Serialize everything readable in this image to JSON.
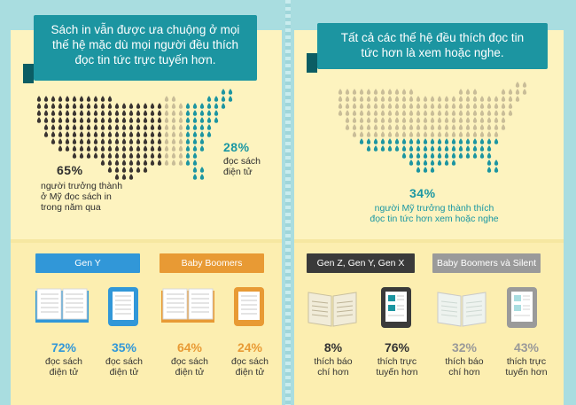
{
  "left": {
    "headline": [
      "Sách in vẫn được ưa chuộng ở mọi",
      "thế hệ mặc dù mọi người đều thích",
      "đọc tin tức trực tuyến hơn."
    ],
    "stat_main": {
      "value": "65%",
      "label": [
        "người trưởng thành",
        "ở Mỹ đọc sách in",
        "trong năm qua"
      ]
    },
    "stat_secondary": {
      "value": "28%",
      "label": [
        "đọc sách",
        "điện tử"
      ]
    },
    "groups": [
      {
        "tag": "Gen Y",
        "items": [
          {
            "icon": "open-book-icon",
            "value": "72%",
            "label": [
              "đọc sách",
              "điện tử"
            ]
          },
          {
            "icon": "tablet-icon",
            "value": "35%",
            "label": [
              "đọc sách",
              "điện tử"
            ]
          }
        ]
      },
      {
        "tag": "Baby Boomers",
        "items": [
          {
            "icon": "open-book-icon",
            "value": "64%",
            "label": [
              "đọc sách",
              "điện tử"
            ]
          },
          {
            "icon": "tablet-icon",
            "value": "24%",
            "label": [
              "đọc sách",
              "điện tử"
            ]
          }
        ]
      }
    ]
  },
  "right": {
    "headline": [
      "Tất cả các thế hệ đều thích đọc tin",
      "tức hơn là xem hoặc nghe."
    ],
    "stat_main": {
      "value": "34%",
      "label": [
        "người Mỹ trưởng thành thích",
        "đọc tin tức hơn xem hoặc nghe"
      ]
    },
    "groups": [
      {
        "tag": "Gen Z, Gen Y, Gen X",
        "items": [
          {
            "icon": "newspaper-icon",
            "value": "8%",
            "label": [
              "thích báo",
              "chí hơn"
            ]
          },
          {
            "icon": "tablet-icon",
            "value": "76%",
            "label": [
              "thích trực",
              "tuyến hơn"
            ]
          }
        ]
      },
      {
        "tag": "Baby Boomers và Silent",
        "items": [
          {
            "icon": "newspaper-icon",
            "value": "32%",
            "label": [
              "thích báo",
              "chí hơn"
            ]
          },
          {
            "icon": "tablet-icon",
            "value": "43%",
            "label": [
              "thích trực",
              "tuyến hơn"
            ]
          }
        ]
      }
    ]
  },
  "colors": {
    "background": "#a9dde0",
    "page": "#fdf3bf",
    "teal": "#1c95a1",
    "dark_drop": "#3a3431",
    "tan_drop": "#c9bd98",
    "blue": "#3197d8",
    "orange": "#e89a34",
    "gray": "#9a9a9a"
  },
  "maps": {
    "left_dark_share": 0.65,
    "left_teal_share": 0.28,
    "right_teal_share": 0.34
  }
}
